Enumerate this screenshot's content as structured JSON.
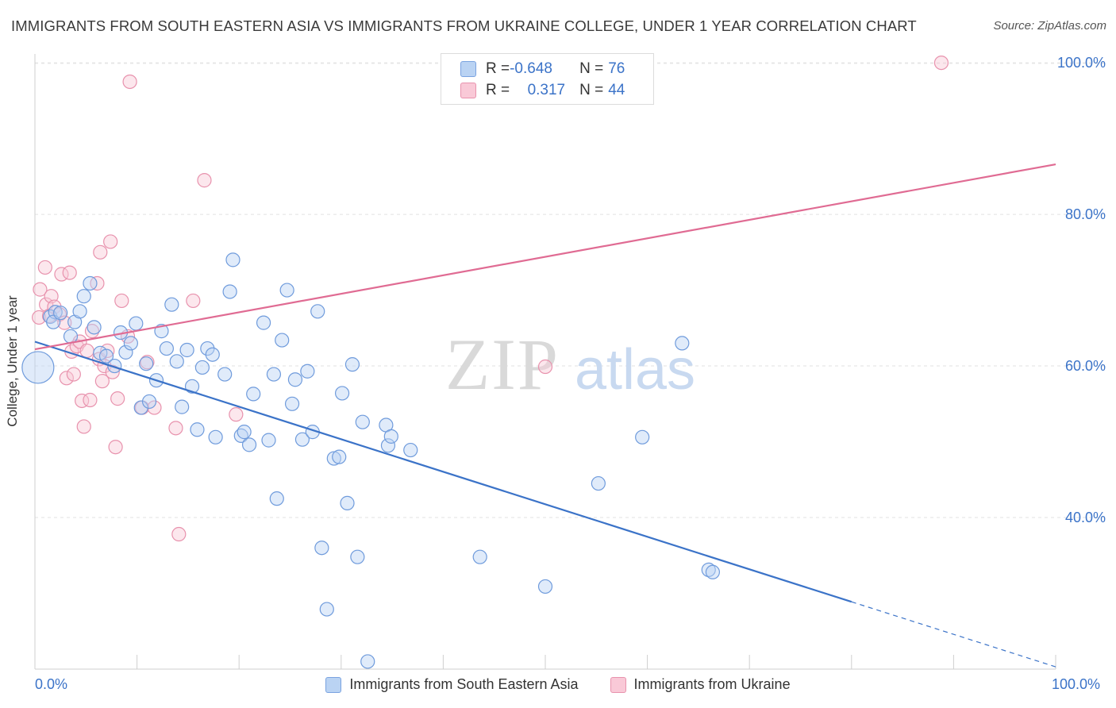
{
  "title": "IMMIGRANTS FROM SOUTH EASTERN ASIA VS IMMIGRANTS FROM UKRAINE COLLEGE, UNDER 1 YEAR CORRELATION CHART",
  "source": "Source: ZipAtlas.com",
  "watermark": {
    "zip": "ZIP",
    "atlas": "atlas"
  },
  "colors": {
    "blue": "#3b73c8",
    "blue_fill": "#bad3f3",
    "pink": "#e06b93",
    "pink_fill": "#f9c9d7"
  },
  "stats": {
    "blue": {
      "r_label": "R = ",
      "r_value": "-0.648",
      "n_label": "N = ",
      "n_value": "76"
    },
    "pink": {
      "r_label": "R = ",
      "r_value": "0.317",
      "n_label": "N = ",
      "n_value": "44"
    }
  },
  "chart_data": {
    "type": "scatter",
    "title": "IMMIGRANTS FROM SOUTH EASTERN ASIA VS IMMIGRANTS FROM UKRAINE COLLEGE, UNDER 1 YEAR CORRELATION CHART",
    "xlabel": "",
    "ylabel": "College, Under 1 year",
    "xlim": [
      0,
      100
    ],
    "ylim": [
      20,
      102
    ],
    "x_tick_labels": [
      "0.0%",
      "100.0%"
    ],
    "y_ticks": [
      40,
      60,
      80,
      100
    ],
    "y_tick_labels": [
      "40.0%",
      "60.0%",
      "80.0%",
      "100.0%"
    ],
    "grid": true,
    "legend_position": "bottom",
    "series": [
      {
        "name": "Immigrants from South Eastern Asia",
        "color": "#3b73c8",
        "points": [
          [
            0.3,
            59.8,
            3
          ],
          [
            1.5,
            66.5,
            1
          ],
          [
            2.0,
            67.1,
            1
          ],
          [
            1.8,
            65.8,
            1
          ],
          [
            2.5,
            67.0,
            1
          ],
          [
            3.5,
            63.9,
            1
          ],
          [
            3.9,
            65.8,
            1
          ],
          [
            4.4,
            67.2,
            1
          ],
          [
            4.8,
            69.2,
            1
          ],
          [
            5.4,
            70.9,
            1
          ],
          [
            5.8,
            65.1,
            1
          ],
          [
            6.4,
            61.7,
            1
          ],
          [
            7.0,
            61.3,
            1
          ],
          [
            7.8,
            60.0,
            1
          ],
          [
            8.4,
            64.4,
            1
          ],
          [
            8.9,
            61.8,
            1
          ],
          [
            9.4,
            63.0,
            1
          ],
          [
            9.9,
            65.6,
            1
          ],
          [
            10.4,
            54.5,
            1
          ],
          [
            11.2,
            55.3,
            1
          ],
          [
            10.9,
            60.3,
            1
          ],
          [
            11.9,
            58.1,
            1
          ],
          [
            12.4,
            64.6,
            1
          ],
          [
            12.9,
            62.3,
            1
          ],
          [
            13.4,
            68.1,
            1
          ],
          [
            13.9,
            60.6,
            1
          ],
          [
            14.4,
            54.6,
            1
          ],
          [
            14.9,
            62.1,
            1
          ],
          [
            15.4,
            57.3,
            1
          ],
          [
            15.9,
            51.6,
            1
          ],
          [
            16.4,
            59.8,
            1
          ],
          [
            16.9,
            62.3,
            1
          ],
          [
            17.4,
            61.5,
            1
          ],
          [
            17.7,
            50.6,
            1
          ],
          [
            18.6,
            58.9,
            1
          ],
          [
            19.1,
            69.8,
            1
          ],
          [
            19.4,
            74.0,
            1
          ],
          [
            20.2,
            50.8,
            1
          ],
          [
            20.5,
            51.3,
            1
          ],
          [
            21.0,
            49.6,
            1
          ],
          [
            21.4,
            56.3,
            1
          ],
          [
            22.4,
            65.7,
            1
          ],
          [
            22.9,
            50.2,
            1
          ],
          [
            23.4,
            58.9,
            1
          ],
          [
            23.7,
            42.5,
            1
          ],
          [
            24.2,
            63.4,
            1
          ],
          [
            24.7,
            70.0,
            1
          ],
          [
            25.2,
            55.0,
            1
          ],
          [
            25.5,
            58.2,
            1
          ],
          [
            26.2,
            50.3,
            1
          ],
          [
            26.7,
            59.3,
            1
          ],
          [
            27.2,
            51.3,
            1
          ],
          [
            27.7,
            67.2,
            1
          ],
          [
            28.1,
            36.0,
            1
          ],
          [
            28.6,
            27.9,
            1
          ],
          [
            29.3,
            47.8,
            1
          ],
          [
            29.8,
            48.0,
            1
          ],
          [
            30.1,
            56.4,
            1
          ],
          [
            30.6,
            41.9,
            1
          ],
          [
            31.1,
            60.2,
            1
          ],
          [
            31.6,
            34.8,
            1
          ],
          [
            32.1,
            52.6,
            1
          ],
          [
            32.6,
            21.0,
            1
          ],
          [
            34.4,
            52.2,
            1
          ],
          [
            34.6,
            49.5,
            1
          ],
          [
            34.9,
            50.7,
            1
          ],
          [
            36.8,
            48.9,
            1
          ],
          [
            43.6,
            34.8,
            1
          ],
          [
            50.0,
            30.9,
            1
          ],
          [
            55.2,
            44.5,
            1
          ],
          [
            59.5,
            50.6,
            1
          ],
          [
            63.4,
            63.0,
            1
          ],
          [
            66.0,
            33.1,
            1
          ],
          [
            66.4,
            32.8,
            1
          ]
        ],
        "trendline": {
          "x": [
            0,
            100
          ],
          "y": [
            63.2,
            20.3
          ],
          "solid_until_x": 80.0
        }
      },
      {
        "name": "Immigrants from Ukraine",
        "color": "#e06b93",
        "points": [
          [
            0.4,
            66.4,
            1
          ],
          [
            0.5,
            70.1,
            1
          ],
          [
            1.0,
            73.0,
            1
          ],
          [
            1.1,
            68.1,
            1
          ],
          [
            1.4,
            66.6,
            1
          ],
          [
            1.6,
            69.2,
            1
          ],
          [
            1.9,
            67.8,
            1
          ],
          [
            2.4,
            66.8,
            1
          ],
          [
            2.6,
            72.1,
            1
          ],
          [
            2.9,
            65.7,
            1
          ],
          [
            3.1,
            58.4,
            1
          ],
          [
            3.4,
            72.3,
            1
          ],
          [
            3.6,
            61.9,
            1
          ],
          [
            3.8,
            58.9,
            1
          ],
          [
            4.1,
            62.6,
            1
          ],
          [
            4.4,
            63.2,
            1
          ],
          [
            4.6,
            55.4,
            1
          ],
          [
            4.8,
            52.0,
            1
          ],
          [
            5.1,
            62.0,
            1
          ],
          [
            5.4,
            55.5,
            1
          ],
          [
            5.6,
            64.6,
            1
          ],
          [
            6.1,
            70.9,
            1
          ],
          [
            6.3,
            60.9,
            1
          ],
          [
            6.4,
            75.0,
            1
          ],
          [
            6.6,
            58.0,
            1
          ],
          [
            6.8,
            60.0,
            1
          ],
          [
            7.1,
            62.0,
            1
          ],
          [
            7.4,
            76.4,
            1
          ],
          [
            7.6,
            59.2,
            1
          ],
          [
            7.9,
            49.3,
            1
          ],
          [
            8.1,
            55.7,
            1
          ],
          [
            8.5,
            68.6,
            1
          ],
          [
            9.1,
            63.9,
            1
          ],
          [
            9.3,
            97.5,
            1
          ],
          [
            10.5,
            54.5,
            1
          ],
          [
            11.0,
            60.5,
            1
          ],
          [
            11.7,
            54.5,
            1
          ],
          [
            13.8,
            51.8,
            1
          ],
          [
            14.1,
            37.8,
            1
          ],
          [
            15.5,
            68.6,
            1
          ],
          [
            16.6,
            84.5,
            1
          ],
          [
            19.7,
            53.6,
            1
          ],
          [
            50.0,
            59.9,
            1
          ],
          [
            88.8,
            100.0,
            1
          ]
        ],
        "trendline": {
          "x": [
            0,
            100
          ],
          "y": [
            62.2,
            86.6
          ],
          "solid_until_x": 100
        }
      }
    ]
  }
}
